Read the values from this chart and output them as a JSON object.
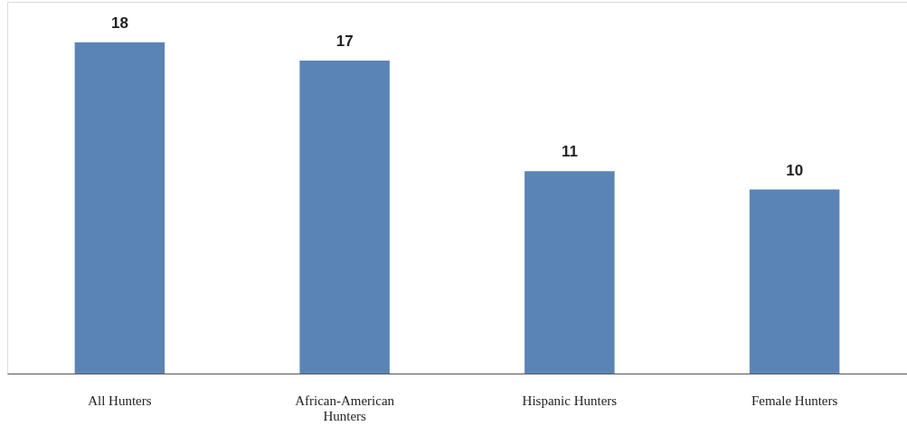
{
  "chart_data": {
    "type": "bar",
    "categories": [
      "All Hunters",
      "African-American Hunters",
      "Hispanic Hunters",
      "Female Hunters"
    ],
    "values": [
      18,
      17,
      11,
      10
    ],
    "color": "#5b84b6",
    "data_labels": true,
    "ylim": [
      0,
      20.2
    ],
    "tick_labels": "x",
    "grid": false
  }
}
